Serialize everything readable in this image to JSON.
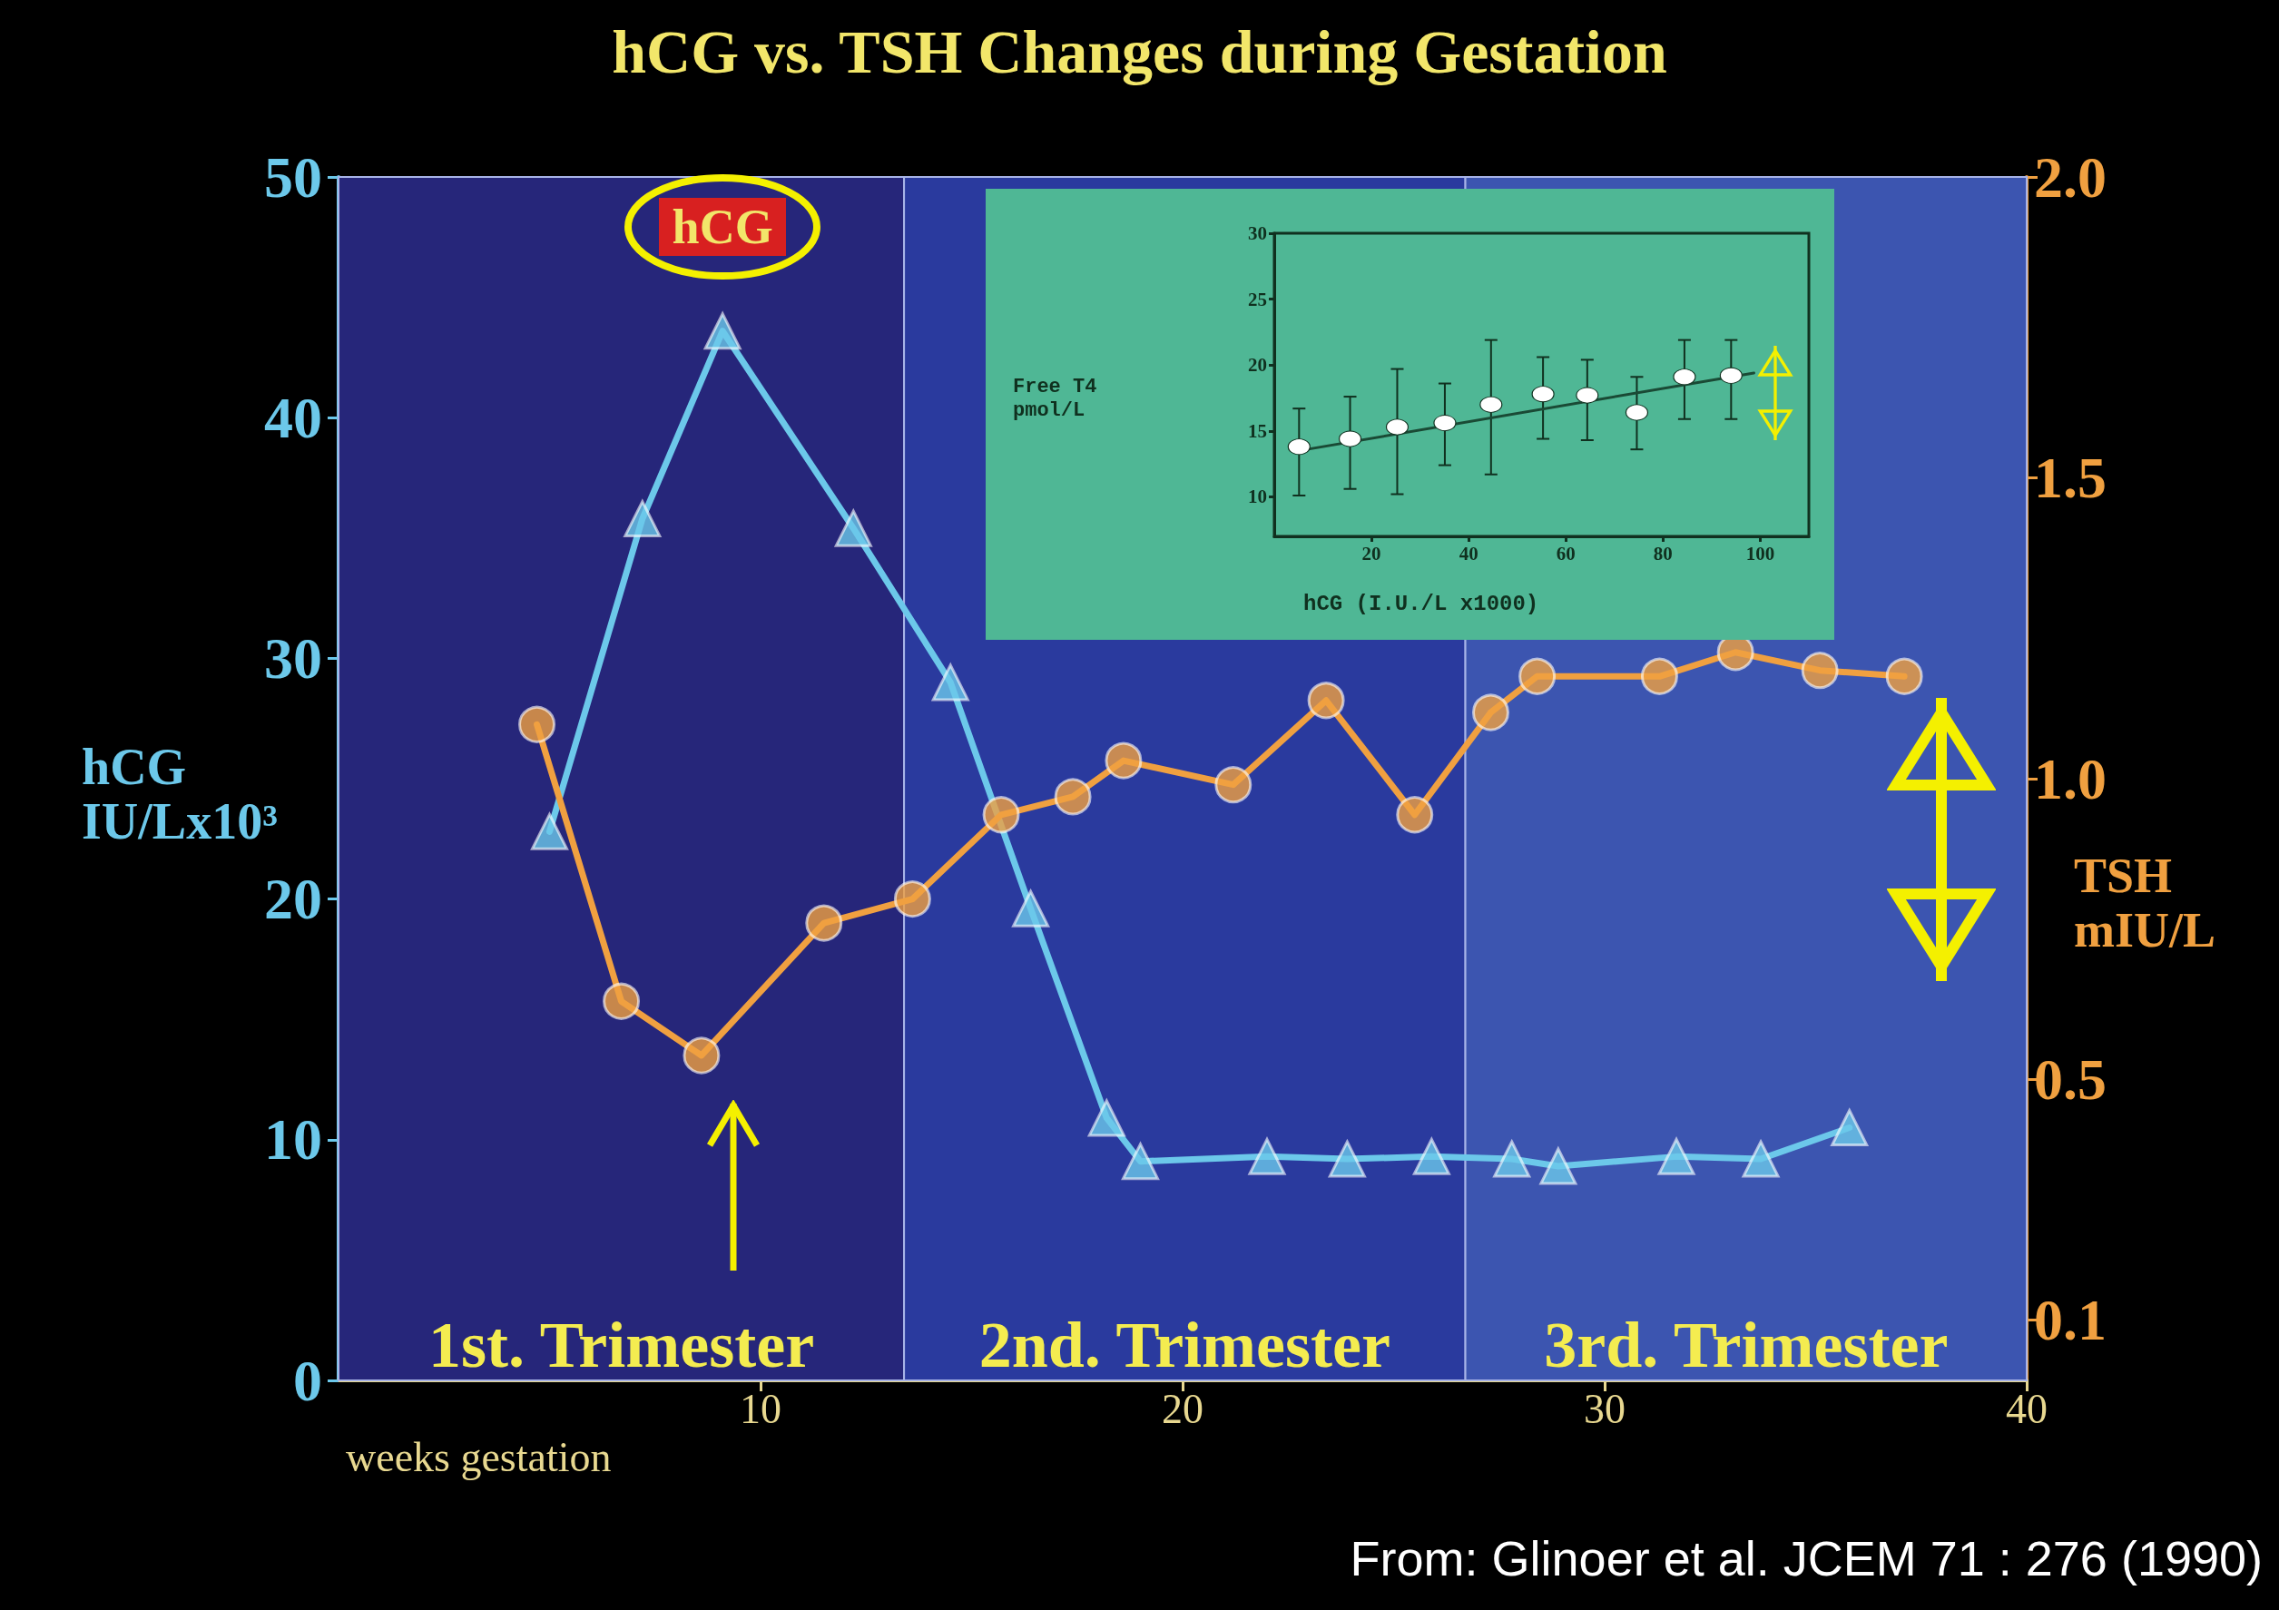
{
  "chart_data": [
    {
      "type": "line",
      "title": "hCG vs. TSH Changes during Gestation",
      "xlabel": "weeks gestation",
      "ylabel": "hCG\nIU/Lx10³",
      "y2label": "TSH\nmIU/L",
      "xlim": [
        0,
        40
      ],
      "xticks": [
        10,
        20,
        30,
        40
      ],
      "ylim": [
        0,
        50
      ],
      "yticks": [
        0,
        10,
        20,
        30,
        40,
        50
      ],
      "y2lim": [
        0,
        2
      ],
      "y2ticks": [
        0.1,
        0.5,
        {
          "value": 1,
          "label": "1.0"
        },
        1.5,
        {
          "value": 2,
          "label": "2.0"
        }
      ],
      "grid": false,
      "line_style": "solid",
      "bands": [
        {
          "axis": "x",
          "from": 0,
          "to": 13.4,
          "label": "1st. Trimester",
          "color": "#26267a"
        },
        {
          "axis": "x",
          "from": 13.4,
          "to": 26.7,
          "label": "2nd. Trimester",
          "color": "#2a3a9e"
        },
        {
          "axis": "x",
          "from": 26.7,
          "to": 40,
          "label": "3rd. Trimester",
          "color": "#3c55b0"
        }
      ],
      "series": [
        {
          "color": "#6cc8ea",
          "marker": "triangle",
          "x": [
            5,
            7.2,
            9.1,
            12.2,
            14.5,
            16.4,
            18.2,
            19.0,
            22.0,
            23.9,
            25.9,
            27.8,
            28.9,
            31.7,
            33.7,
            35.8
          ],
          "values": [
            22.8,
            35.8,
            43.6,
            35.4,
            29.0,
            19.6,
            10.9,
            9.1,
            9.3,
            9.2,
            9.3,
            9.2,
            8.9,
            9.3,
            9.2,
            10.5
          ]
        },
        {
          "color": "#f0a040",
          "marker": "circle",
          "axis": "y2",
          "x": [
            4.7,
            6.7,
            8.6,
            11.5,
            13.6,
            15.7,
            17.4,
            18.6,
            21.2,
            23.4,
            25.5,
            27.3,
            28.4,
            31.3,
            33.1,
            35.1,
            37.1
          ],
          "values": [
            1.09,
            0.63,
            0.54,
            0.76,
            0.8,
            0.94,
            0.97,
            1.03,
            0.99,
            1.13,
            0.94,
            1.11,
            1.17,
            1.17,
            1.21,
            1.18,
            1.17
          ]
        }
      ],
      "annotations": [
        {
          "text": "hCG",
          "x": 9.1,
          "y": 43.6
        },
        "From: Glinoer et al. JCEM 71 : 276 (1990)"
      ]
    },
    {
      "type": "scatter",
      "xlabel": "hCG (I.U./L x1000)",
      "ylabel": "Free T4\npmol/L",
      "xlim": [
        0,
        110
      ],
      "xticks": [
        20,
        40,
        60,
        80,
        100
      ],
      "ylim": [
        7,
        30
      ],
      "yticks": [
        10,
        15,
        20,
        25,
        30
      ],
      "grid": false,
      "marker": "circle",
      "series": [
        {
          "color": "#ffffff",
          "x": [
            5.1,
            15.6,
            25.3,
            35.1,
            44.6,
            55.3,
            64.4,
            74.6,
            84.4,
            94.0
          ],
          "values": [
            13.8,
            14.4,
            15.3,
            15.6,
            17.0,
            17.8,
            17.7,
            16.4,
            19.1,
            19.2
          ],
          "errors": [
            [
              10.1,
              16.7
            ],
            [
              10.6,
              17.6
            ],
            [
              10.2,
              19.7
            ],
            [
              12.4,
              18.6
            ],
            [
              11.7,
              21.9
            ],
            [
              14.4,
              20.6
            ],
            [
              14.3,
              20.4
            ],
            [
              13.6,
              19.1
            ],
            [
              15.9,
              21.9
            ],
            [
              15.9,
              21.9
            ]
          ]
        },
        {
          "type": "line",
          "color": "#1a4a35",
          "marker": "none",
          "x": [
            5.1,
            98.7
          ],
          "values": [
            13.5,
            19.4
          ]
        }
      ]
    }
  ]
}
